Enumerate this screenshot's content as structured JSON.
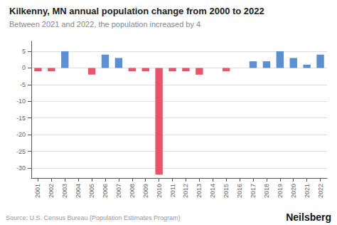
{
  "chart_data": {
    "type": "bar",
    "title": "Kilkenny, MN annual population change from 2000 to 2022",
    "subtitle": "Between 2021 and 2022, the population increased by 4",
    "annotations": [
      "Source: U.S. Census Bureau (Population Estimates Program)",
      "Neilsberg"
    ],
    "categories": [
      "2001",
      "2002",
      "2003",
      "2004",
      "2005",
      "2006",
      "2007",
      "2008",
      "2009",
      "2010",
      "2011",
      "2012",
      "2013",
      "2014",
      "2015",
      "2016",
      "2017",
      "2018",
      "2019",
      "2020",
      "2021",
      "2022"
    ],
    "values": [
      -1,
      -1,
      5,
      0,
      -2,
      4,
      3,
      -1,
      -1,
      -32,
      -1,
      -1,
      -2,
      0,
      -1,
      0,
      2,
      2,
      5,
      3,
      1,
      4
    ],
    "colors": [
      "#e8546a",
      "#e8546a",
      "#5b8fd4",
      "#5b8fd4",
      "#e8546a",
      "#5b8fd4",
      "#5b8fd4",
      "#e8546a",
      "#e8546a",
      "#e8546a",
      "#e8546a",
      "#e8546a",
      "#e8546a",
      "#5b8fd4",
      "#e8546a",
      "#5b8fd4",
      "#5b8fd4",
      "#5b8fd4",
      "#5b8fd4",
      "#5b8fd4",
      "#5b8fd4",
      "#5b8fd4"
    ],
    "ylim": [
      -33,
      8
    ],
    "yticks": [
      5,
      0,
      -5,
      -10,
      -15,
      -20,
      -25,
      -30
    ],
    "grid": true
  }
}
